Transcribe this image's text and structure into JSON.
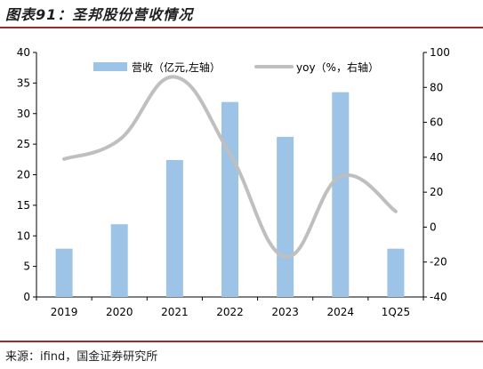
{
  "figure": {
    "title": "图表91：圣邦股份营收情况",
    "source": "来源：ifind，国金证券研究所"
  },
  "chart_data": {
    "type": "bar",
    "categories": [
      "2019",
      "2020",
      "2021",
      "2022",
      "2023",
      "2024",
      "1Q25"
    ],
    "series": [
      {
        "name": "营收（亿元,左轴）",
        "type": "bar",
        "axis": "left",
        "values": [
          7.9,
          11.9,
          22.4,
          31.9,
          26.2,
          33.5,
          7.9
        ],
        "color": "#9dc3e6"
      },
      {
        "name": "yoy（%，右轴）",
        "type": "line",
        "axis": "right",
        "values": [
          39,
          50,
          86,
          42,
          -17,
          29,
          9
        ],
        "color": "#bfbfbf"
      }
    ],
    "ylim_left": [
      0,
      40
    ],
    "yticks_left": [
      "0",
      "5",
      "10",
      "15",
      "20",
      "25",
      "30",
      "35",
      "40"
    ],
    "ylim_right": [
      -40,
      100
    ],
    "yticks_right": [
      "-40",
      "-20",
      "0",
      "20",
      "40",
      "60",
      "80",
      "100"
    ],
    "grid": false,
    "legend_position": "top"
  }
}
